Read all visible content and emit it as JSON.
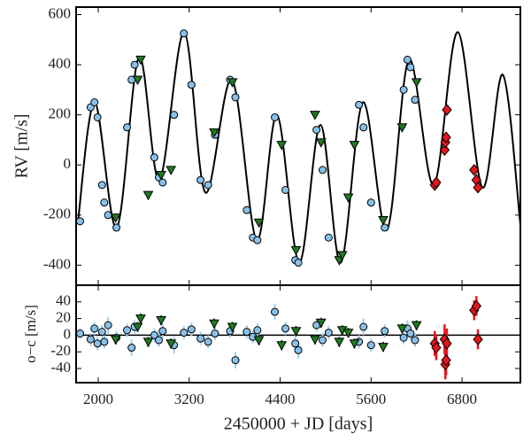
{
  "chart_data": [
    {
      "type": "scatter",
      "ylabel": "RV [m/s]",
      "xlim": [
        1708,
        7570
      ],
      "ylim": [
        -480,
        630
      ],
      "yticks": [
        -400,
        -200,
        0,
        200,
        400,
        600
      ],
      "model": {
        "color": "#000000",
        "x": [
          1731,
          1953,
          2245,
          2537,
          2806,
          3133,
          3413,
          3764,
          4091,
          4359,
          4651,
          4932,
          5200,
          5492,
          5808,
          6100,
          6427,
          6742,
          7069,
          7338,
          7571
        ],
        "values": [
          -230,
          250,
          -250,
          430,
          -60,
          530,
          -110,
          340,
          -300,
          200,
          -390,
          160,
          -390,
          250,
          -260,
          420,
          -80,
          530,
          -90,
          360,
          -240
        ]
      },
      "series": [
        {
          "marker": "circle",
          "color": "#87c1ea",
          "x": [
            1760,
            1900,
            1950,
            1990,
            2050,
            2080,
            2130,
            2240,
            2380,
            2440,
            2480,
            2740,
            2800,
            2850,
            3000,
            3130,
            3230,
            3350,
            3450,
            3540,
            3740,
            3810,
            3960,
            4040,
            4100,
            4330,
            4470,
            4600,
            4640,
            4880,
            4960,
            5040,
            5440,
            5500,
            5600,
            5780,
            6030,
            6080,
            6120,
            6180
          ],
          "values": [
            -225,
            230,
            250,
            190,
            -80,
            -150,
            -200,
            -250,
            150,
            340,
            400,
            30,
            -50,
            -70,
            200,
            525,
            320,
            -60,
            -80,
            120,
            340,
            270,
            -180,
            -290,
            -300,
            190,
            -100,
            -380,
            -390,
            140,
            -20,
            -290,
            240,
            150,
            -150,
            -250,
            300,
            420,
            390,
            260
          ]
        },
        {
          "marker": "triangle",
          "color": "#1f7a1f",
          "x": [
            2230,
            2520,
            2560,
            2660,
            2830,
            2960,
            3530,
            3770,
            4120,
            4420,
            4610,
            4860,
            4940,
            5180,
            5220,
            5300,
            5380,
            5760,
            6010,
            6200
          ],
          "values": [
            -210,
            340,
            420,
            -120,
            -40,
            -20,
            130,
            330,
            -230,
            80,
            -340,
            200,
            90,
            -380,
            -360,
            -130,
            80,
            -220,
            150,
            330
          ]
        },
        {
          "marker": "diamond",
          "color": "#e8141b",
          "x": [
            6440,
            6460,
            6570,
            6580,
            6590,
            6600,
            6960,
            6990,
            7010
          ],
          "values": [
            -80,
            -70,
            60,
            90,
            110,
            220,
            -20,
            -60,
            -90
          ]
        }
      ]
    },
    {
      "type": "scatter",
      "ylabel": "o−c [m/s]",
      "xlabel": "2450000 + JD [days]",
      "xlim": [
        1708,
        7570
      ],
      "ylim": [
        -57,
        60
      ],
      "xticks": [
        2000,
        3200,
        4400,
        5600,
        6800
      ],
      "yticks": [
        -40,
        -20,
        0,
        20,
        40
      ],
      "series": [
        {
          "marker": "circle",
          "color": "#87c1ea",
          "errcolor": "#9fd0f0",
          "x": [
            1760,
            1900,
            1950,
            1990,
            2050,
            2080,
            2130,
            2240,
            2380,
            2440,
            2480,
            2740,
            2800,
            2850,
            3000,
            3130,
            3230,
            3350,
            3450,
            3540,
            3740,
            3810,
            3960,
            4040,
            4100,
            4330,
            4470,
            4600,
            4640,
            4880,
            4960,
            5040,
            5440,
            5500,
            5600,
            5780,
            6030,
            6080,
            6120,
            6180
          ],
          "values": [
            2,
            -5,
            8,
            -10,
            4,
            -8,
            12,
            -3,
            6,
            -15,
            10,
            0,
            -6,
            5,
            -12,
            3,
            7,
            -4,
            -8,
            2,
            5,
            -30,
            4,
            -2,
            6,
            28,
            8,
            -10,
            -18,
            12,
            -6,
            3,
            -8,
            10,
            -12,
            5,
            -3,
            8,
            2,
            -6
          ],
          "errors": [
            6,
            8,
            8,
            8,
            8,
            8,
            10,
            8,
            8,
            10,
            8,
            8,
            8,
            8,
            10,
            8,
            8,
            8,
            8,
            8,
            8,
            10,
            8,
            8,
            8,
            10,
            8,
            10,
            10,
            8,
            8,
            8,
            8,
            10,
            8,
            8,
            8,
            10,
            8,
            8
          ]
        },
        {
          "marker": "triangle",
          "color": "#1f7a1f",
          "errcolor": "#1f5e1f",
          "x": [
            2230,
            2520,
            2560,
            2660,
            2830,
            2960,
            3530,
            3770,
            4120,
            4420,
            4610,
            4860,
            4940,
            5180,
            5220,
            5300,
            5380,
            5760,
            6010,
            6200
          ],
          "values": [
            -5,
            10,
            20,
            -8,
            18,
            -10,
            14,
            10,
            -6,
            -12,
            5,
            -5,
            15,
            -8,
            6,
            3,
            -10,
            -14,
            8,
            12
          ],
          "errors": [
            6,
            6,
            6,
            6,
            6,
            6,
            6,
            6,
            6,
            6,
            6,
            6,
            6,
            6,
            6,
            6,
            6,
            6,
            6,
            6
          ]
        },
        {
          "marker": "diamond",
          "color": "#e8141b",
          "errcolor": "#e8141b",
          "x": [
            6440,
            6460,
            6570,
            6580,
            6590,
            6600,
            6960,
            6990,
            7010
          ],
          "values": [
            -10,
            -15,
            -5,
            -35,
            -30,
            -10,
            30,
            35,
            -5
          ],
          "errors": [
            15,
            15,
            18,
            18,
            18,
            18,
            12,
            12,
            12
          ]
        }
      ]
    }
  ]
}
